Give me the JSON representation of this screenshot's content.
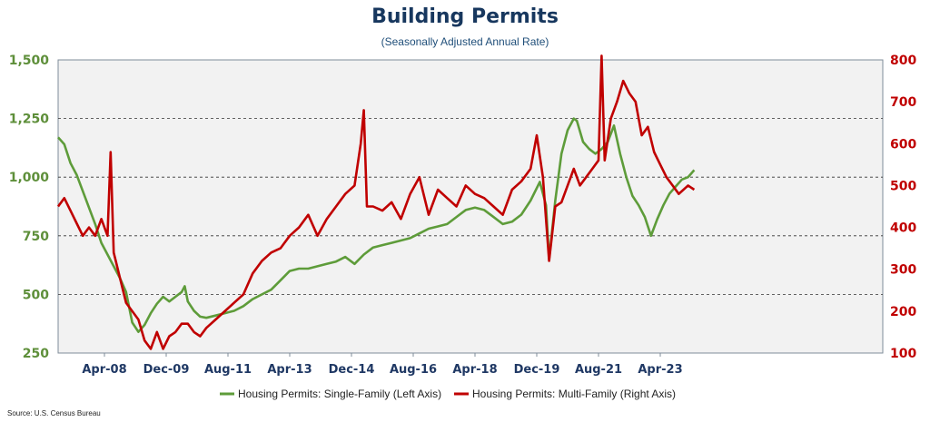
{
  "chart_data": {
    "type": "line",
    "title": "Building Permits",
    "subtitle": "(Seasonally Adjusted Annual Rate)",
    "source": "Source: U.S. Census Bureau",
    "x_start": "2007-01",
    "x_ticks": [
      "Apr-08",
      "Dec-09",
      "Aug-11",
      "Apr-13",
      "Dec-14",
      "Aug-16",
      "Apr-18",
      "Dec-19",
      "Aug-21",
      "Apr-23"
    ],
    "y_left": {
      "min": 250,
      "max": 1500,
      "ticks": [
        "250",
        "500",
        "750",
        "1,000",
        "1,250",
        "1,500"
      ],
      "tick_values": [
        250,
        500,
        750,
        1000,
        1250,
        1500
      ]
    },
    "y_right": {
      "min": 100,
      "max": 800,
      "ticks": [
        "100",
        "200",
        "300",
        "400",
        "500",
        "600",
        "700",
        "800"
      ],
      "tick_values": [
        100,
        200,
        300,
        400,
        500,
        600,
        700,
        800
      ]
    },
    "colors": {
      "single": "#5e9c3a",
      "multi": "#c00000",
      "plot_bg": "#f2f2f2"
    },
    "grid": "dashed horizontal lines at 500, 750, 1,000, 1,250",
    "series": [
      {
        "name": "Housing Permits: Single-Family (Left Axis)",
        "axis": "left",
        "points": [
          [
            "2007-01",
            1170
          ],
          [
            "2007-03",
            1140
          ],
          [
            "2007-05",
            1060
          ],
          [
            "2007-07",
            1010
          ],
          [
            "2007-09",
            940
          ],
          [
            "2007-11",
            870
          ],
          [
            "2008-01",
            800
          ],
          [
            "2008-03",
            720
          ],
          [
            "2008-05",
            670
          ],
          [
            "2008-07",
            620
          ],
          [
            "2008-09",
            570
          ],
          [
            "2008-11",
            510
          ],
          [
            "2009-01",
            380
          ],
          [
            "2009-03",
            340
          ],
          [
            "2009-05",
            370
          ],
          [
            "2009-07",
            420
          ],
          [
            "2009-09",
            460
          ],
          [
            "2009-11",
            490
          ],
          [
            "2010-01",
            470
          ],
          [
            "2010-03",
            490
          ],
          [
            "2010-05",
            510
          ],
          [
            "2010-06",
            535
          ],
          [
            "2010-07",
            470
          ],
          [
            "2010-09",
            430
          ],
          [
            "2010-11",
            405
          ],
          [
            "2011-01",
            400
          ],
          [
            "2011-04",
            410
          ],
          [
            "2011-07",
            420
          ],
          [
            "2011-10",
            430
          ],
          [
            "2012-01",
            450
          ],
          [
            "2012-04",
            480
          ],
          [
            "2012-07",
            500
          ],
          [
            "2012-10",
            520
          ],
          [
            "2013-01",
            560
          ],
          [
            "2013-04",
            600
          ],
          [
            "2013-07",
            610
          ],
          [
            "2013-10",
            610
          ],
          [
            "2014-01",
            620
          ],
          [
            "2014-04",
            630
          ],
          [
            "2014-07",
            640
          ],
          [
            "2014-10",
            660
          ],
          [
            "2015-01",
            630
          ],
          [
            "2015-04",
            670
          ],
          [
            "2015-07",
            700
          ],
          [
            "2015-10",
            710
          ],
          [
            "2016-01",
            720
          ],
          [
            "2016-04",
            730
          ],
          [
            "2016-07",
            740
          ],
          [
            "2016-10",
            760
          ],
          [
            "2017-01",
            780
          ],
          [
            "2017-04",
            790
          ],
          [
            "2017-07",
            800
          ],
          [
            "2017-10",
            830
          ],
          [
            "2018-01",
            860
          ],
          [
            "2018-04",
            870
          ],
          [
            "2018-07",
            860
          ],
          [
            "2018-10",
            830
          ],
          [
            "2019-01",
            800
          ],
          [
            "2019-04",
            810
          ],
          [
            "2019-07",
            840
          ],
          [
            "2019-10",
            900
          ],
          [
            "2020-01",
            980
          ],
          [
            "2020-03",
            880
          ],
          [
            "2020-04",
            650
          ],
          [
            "2020-06",
            900
          ],
          [
            "2020-08",
            1100
          ],
          [
            "2020-10",
            1200
          ],
          [
            "2020-12",
            1250
          ],
          [
            "2021-01",
            1240
          ],
          [
            "2021-03",
            1150
          ],
          [
            "2021-05",
            1120
          ],
          [
            "2021-07",
            1100
          ],
          [
            "2021-09",
            1120
          ],
          [
            "2021-11",
            1150
          ],
          [
            "2022-01",
            1220
          ],
          [
            "2022-03",
            1100
          ],
          [
            "2022-05",
            1000
          ],
          [
            "2022-07",
            920
          ],
          [
            "2022-09",
            880
          ],
          [
            "2022-11",
            830
          ],
          [
            "2023-01",
            750
          ],
          [
            "2023-03",
            820
          ],
          [
            "2023-05",
            880
          ],
          [
            "2023-07",
            930
          ],
          [
            "2023-09",
            960
          ],
          [
            "2023-11",
            990
          ],
          [
            "2024-01",
            1000
          ],
          [
            "2024-03",
            1030
          ]
        ]
      },
      {
        "name": "Housing Permits: Multi-Family (Right Axis)",
        "axis": "right",
        "points": [
          [
            "2007-01",
            450
          ],
          [
            "2007-03",
            470
          ],
          [
            "2007-05",
            440
          ],
          [
            "2007-07",
            410
          ],
          [
            "2007-09",
            380
          ],
          [
            "2007-11",
            400
          ],
          [
            "2008-01",
            380
          ],
          [
            "2008-03",
            420
          ],
          [
            "2008-05",
            380
          ],
          [
            "2008-06",
            580
          ],
          [
            "2008-07",
            340
          ],
          [
            "2008-09",
            280
          ],
          [
            "2008-11",
            220
          ],
          [
            "2009-01",
            200
          ],
          [
            "2009-03",
            180
          ],
          [
            "2009-05",
            130
          ],
          [
            "2009-07",
            110
          ],
          [
            "2009-09",
            150
          ],
          [
            "2009-11",
            110
          ],
          [
            "2010-01",
            140
          ],
          [
            "2010-03",
            150
          ],
          [
            "2010-05",
            170
          ],
          [
            "2010-07",
            170
          ],
          [
            "2010-09",
            150
          ],
          [
            "2010-11",
            140
          ],
          [
            "2011-01",
            160
          ],
          [
            "2011-04",
            180
          ],
          [
            "2011-07",
            200
          ],
          [
            "2011-10",
            220
          ],
          [
            "2012-01",
            240
          ],
          [
            "2012-04",
            290
          ],
          [
            "2012-07",
            320
          ],
          [
            "2012-10",
            340
          ],
          [
            "2013-01",
            350
          ],
          [
            "2013-04",
            380
          ],
          [
            "2013-07",
            400
          ],
          [
            "2013-10",
            430
          ],
          [
            "2014-01",
            380
          ],
          [
            "2014-04",
            420
          ],
          [
            "2014-07",
            450
          ],
          [
            "2014-10",
            480
          ],
          [
            "2015-01",
            500
          ],
          [
            "2015-03",
            600
          ],
          [
            "2015-04",
            680
          ],
          [
            "2015-05",
            450
          ],
          [
            "2015-07",
            450
          ],
          [
            "2015-10",
            440
          ],
          [
            "2016-01",
            460
          ],
          [
            "2016-04",
            420
          ],
          [
            "2016-07",
            480
          ],
          [
            "2016-10",
            520
          ],
          [
            "2017-01",
            430
          ],
          [
            "2017-04",
            490
          ],
          [
            "2017-07",
            470
          ],
          [
            "2017-10",
            450
          ],
          [
            "2018-01",
            500
          ],
          [
            "2018-04",
            480
          ],
          [
            "2018-07",
            470
          ],
          [
            "2018-10",
            450
          ],
          [
            "2019-01",
            430
          ],
          [
            "2019-04",
            490
          ],
          [
            "2019-07",
            510
          ],
          [
            "2019-10",
            540
          ],
          [
            "2019-12",
            620
          ],
          [
            "2020-02",
            520
          ],
          [
            "2020-04",
            320
          ],
          [
            "2020-06",
            450
          ],
          [
            "2020-08",
            460
          ],
          [
            "2020-10",
            500
          ],
          [
            "2020-12",
            540
          ],
          [
            "2021-02",
            500
          ],
          [
            "2021-04",
            520
          ],
          [
            "2021-06",
            540
          ],
          [
            "2021-08",
            560
          ],
          [
            "2021-09",
            810
          ],
          [
            "2021-10",
            560
          ],
          [
            "2021-12",
            660
          ],
          [
            "2022-02",
            700
          ],
          [
            "2022-04",
            750
          ],
          [
            "2022-06",
            720
          ],
          [
            "2022-08",
            700
          ],
          [
            "2022-10",
            620
          ],
          [
            "2022-12",
            640
          ],
          [
            "2023-02",
            580
          ],
          [
            "2023-04",
            550
          ],
          [
            "2023-06",
            520
          ],
          [
            "2023-08",
            500
          ],
          [
            "2023-10",
            480
          ],
          [
            "2024-01",
            500
          ],
          [
            "2024-03",
            490
          ]
        ]
      }
    ]
  }
}
